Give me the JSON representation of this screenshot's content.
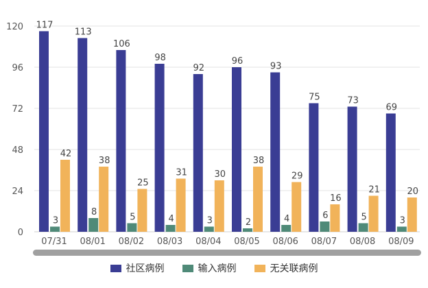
{
  "chart_data": {
    "type": "bar",
    "title": "",
    "xlabel": "",
    "ylabel": "",
    "categories": [
      "07/31",
      "08/01",
      "08/02",
      "08/03",
      "08/04",
      "08/05",
      "08/06",
      "08/07",
      "08/08",
      "08/09"
    ],
    "series": [
      {
        "name": "社区病例",
        "color": "#3a3d94",
        "values": [
          117,
          113,
          106,
          98,
          92,
          96,
          93,
          75,
          73,
          69
        ]
      },
      {
        "name": "输入病例",
        "color": "#4f8a78",
        "values": [
          3,
          8,
          5,
          4,
          3,
          2,
          4,
          6,
          5,
          3
        ]
      },
      {
        "name": "无关联病例",
        "color": "#f1b35a",
        "values": [
          42,
          38,
          25,
          31,
          30,
          38,
          29,
          16,
          21,
          20
        ]
      }
    ],
    "ylim": [
      0,
      120
    ],
    "yticks": [
      "0",
      "24",
      "48",
      "72",
      "96",
      "120"
    ],
    "grid": true,
    "legend_position": "bottom"
  }
}
